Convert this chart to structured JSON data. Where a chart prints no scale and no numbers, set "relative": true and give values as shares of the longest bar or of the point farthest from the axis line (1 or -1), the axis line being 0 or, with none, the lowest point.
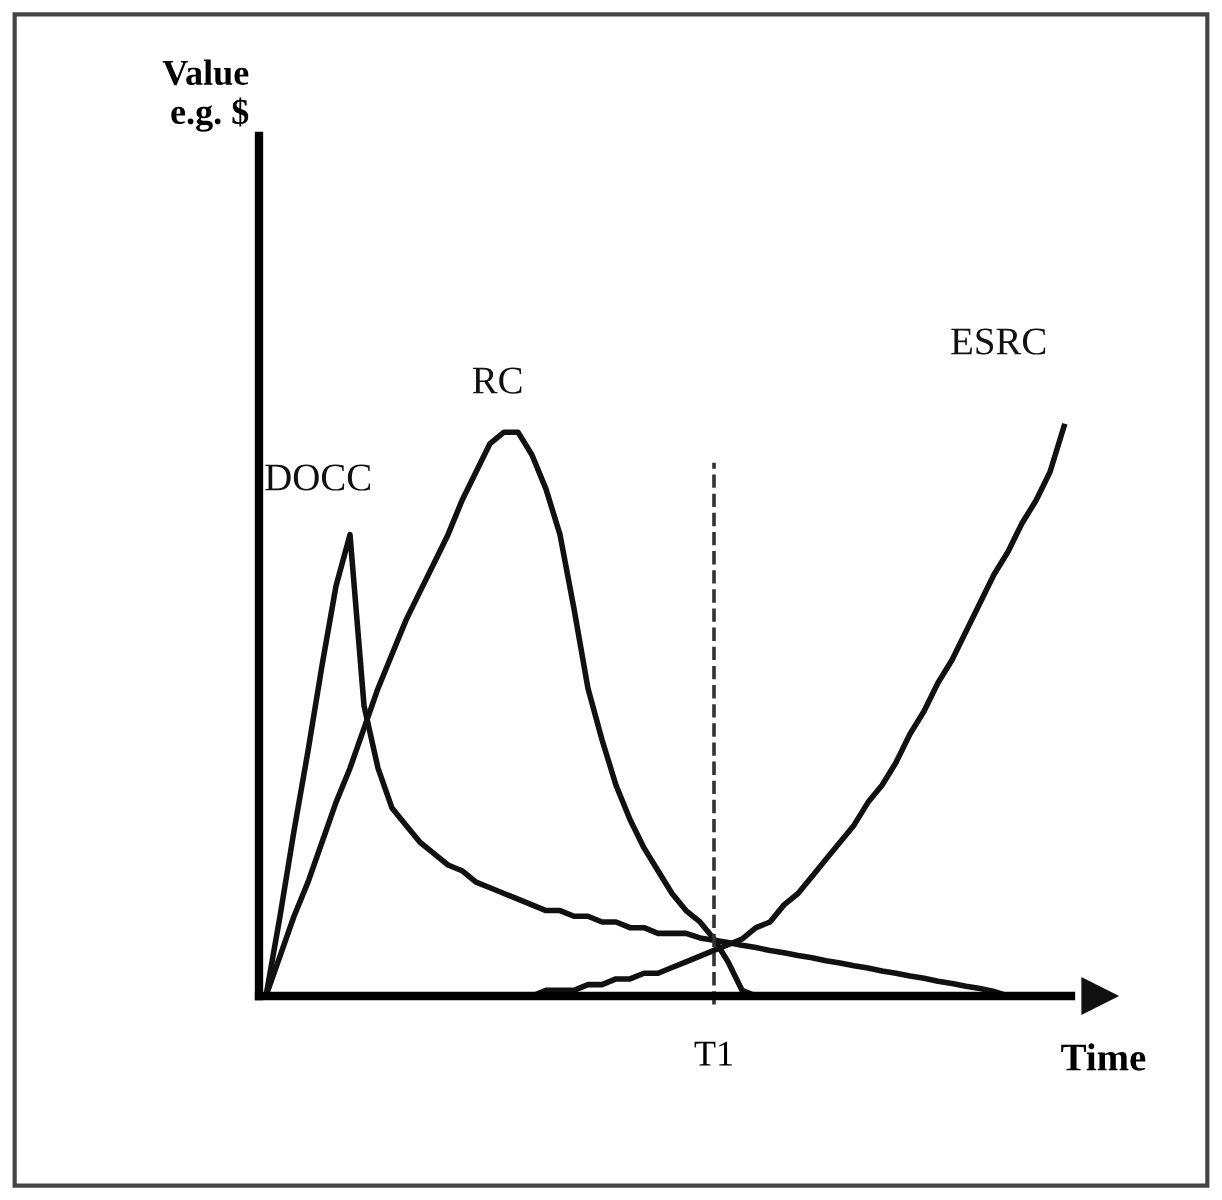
{
  "chart_data": {
    "type": "line",
    "relative": true,
    "xlabel": "Time",
    "categories": [
      null,
      null,
      null,
      null,
      null,
      null,
      null,
      null,
      null,
      null,
      null,
      null,
      null,
      null,
      null,
      null,
      null,
      null,
      null,
      null,
      null,
      null,
      null,
      null,
      null,
      null,
      null,
      null,
      null,
      null,
      null,
      null,
      null,
      null,
      null,
      null,
      null,
      null,
      null,
      null,
      null,
      null,
      null,
      null,
      null,
      null,
      null,
      null,
      null,
      null,
      null,
      null,
      null,
      null,
      null,
      null,
      null,
      null
    ],
    "series": [
      {
        "name": "DOCC",
        "color": "#111111",
        "values": [
          0,
          0.14,
          0.29,
          0.43,
          0.58,
          0.72,
          0.81,
          0.51,
          0.4,
          0.33,
          0.3,
          0.27,
          0.25,
          0.23,
          0.22,
          0.2,
          0.19,
          0.18,
          0.17,
          0.16,
          0.15,
          0.15,
          0.14,
          0.14,
          0.13,
          0.13,
          0.12,
          0.12,
          0.11,
          0.11,
          0.11,
          0.102,
          0.098,
          0.094,
          0.089,
          0.085,
          0.08,
          0.076,
          0.071,
          0.067,
          0.062,
          0.058,
          0.053,
          0.049,
          0.044,
          0.04,
          0.035,
          0.031,
          0.026,
          0.022,
          0.017,
          0.013,
          0.008,
          0,
          null,
          null,
          null,
          null
        ]
      },
      {
        "name": "RC",
        "color": "#111111",
        "values": [
          0,
          0.07,
          0.14,
          0.2,
          0.27,
          0.34,
          0.4,
          0.47,
          0.54,
          0.6,
          0.66,
          0.71,
          0.76,
          0.81,
          0.87,
          0.92,
          0.97,
          0.99,
          0.99,
          0.95,
          0.89,
          0.81,
          0.68,
          0.54,
          0.45,
          0.37,
          0.31,
          0.26,
          0.22,
          0.18,
          0.15,
          0.13,
          0.1,
          0.06,
          0.01,
          0,
          null,
          null,
          null,
          null,
          null,
          null,
          null,
          null,
          null,
          null,
          null,
          null,
          null,
          null,
          null,
          null,
          null,
          null,
          null,
          null,
          null,
          null
        ]
      },
      {
        "name": "ESRC",
        "color": "#111111",
        "values": [
          null,
          null,
          null,
          null,
          null,
          null,
          null,
          null,
          null,
          null,
          null,
          null,
          null,
          null,
          null,
          null,
          null,
          null,
          null,
          0,
          0.01,
          0.01,
          0.01,
          0.02,
          0.02,
          0.03,
          0.03,
          0.04,
          0.04,
          0.05,
          0.06,
          0.07,
          0.08,
          0.09,
          0.1,
          0.12,
          0.13,
          0.16,
          0.18,
          0.21,
          0.24,
          0.27,
          0.3,
          0.34,
          0.37,
          0.41,
          0.46,
          0.5,
          0.55,
          0.59,
          0.64,
          0.69,
          0.74,
          0.78,
          0.83,
          0.87,
          0.92,
          1.0
        ]
      }
    ],
    "annotations": [
      "T1",
      "Value\ne.g. $"
    ],
    "marker": "none",
    "line_style": "solid"
  }
}
